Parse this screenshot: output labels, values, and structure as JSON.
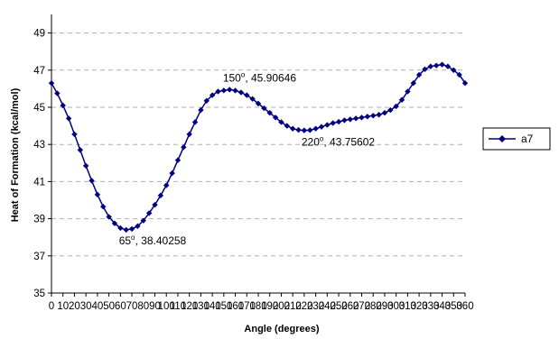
{
  "chart_data": {
    "type": "line",
    "xlabel": "Angle (degrees)",
    "ylabel": "Heat of Formation (kcal/mol)",
    "xlim": [
      0,
      360
    ],
    "ylim": [
      35,
      50
    ],
    "x_ticks": [
      "0",
      "10",
      "20",
      "30",
      "40",
      "50",
      "60",
      "70",
      "80",
      "90",
      "100",
      "110",
      "120",
      "130",
      "140",
      "150",
      "160",
      "170",
      "180",
      "190",
      "200",
      "210",
      "220",
      "230",
      "240",
      "250",
      "260",
      "270",
      "280",
      "290",
      "300",
      "310",
      "320",
      "330",
      "340",
      "350",
      "360"
    ],
    "y_ticks": [
      "35",
      "37",
      "39",
      "41",
      "43",
      "45",
      "47",
      "49"
    ],
    "grid": "horizontal dashed",
    "legend_position": "right",
    "colors": {
      "series": "#000080",
      "grid": "#b0b0b0",
      "axis": "#000000"
    },
    "series": [
      {
        "name": "a7",
        "marker": "diamond",
        "x": [
          0,
          5,
          10,
          15,
          20,
          25,
          30,
          35,
          40,
          45,
          50,
          55,
          60,
          65,
          70,
          75,
          80,
          85,
          90,
          95,
          100,
          105,
          110,
          115,
          120,
          125,
          130,
          135,
          140,
          145,
          150,
          155,
          160,
          165,
          170,
          175,
          180,
          185,
          190,
          195,
          200,
          205,
          210,
          215,
          220,
          225,
          230,
          235,
          240,
          245,
          250,
          255,
          260,
          265,
          270,
          275,
          280,
          285,
          290,
          295,
          300,
          305,
          310,
          315,
          320,
          325,
          330,
          335,
          340,
          345,
          350,
          355,
          360
        ],
        "y": [
          46.3,
          45.75,
          45.1,
          44.4,
          43.55,
          42.7,
          41.85,
          41.05,
          40.3,
          39.65,
          39.1,
          38.75,
          38.5,
          38.40258,
          38.45,
          38.6,
          38.9,
          39.3,
          39.75,
          40.25,
          40.8,
          41.45,
          42.15,
          42.85,
          43.55,
          44.2,
          44.85,
          45.35,
          45.65,
          45.85,
          45.90646,
          45.95,
          45.9,
          45.8,
          45.65,
          45.45,
          45.2,
          44.95,
          44.7,
          44.45,
          44.2,
          44.0,
          43.85,
          43.78,
          43.75602,
          43.77,
          43.85,
          43.95,
          44.05,
          44.15,
          44.22,
          44.3,
          44.35,
          44.4,
          44.45,
          44.5,
          44.55,
          44.6,
          44.7,
          44.85,
          45.05,
          45.4,
          45.85,
          46.3,
          46.75,
          47.05,
          47.2,
          47.25,
          47.3,
          47.2,
          47.0,
          46.75,
          46.3
        ]
      }
    ],
    "annotations": [
      {
        "x": 65,
        "y": 38.40258,
        "degree": "65",
        "sup": "o",
        "value": ", 38.40258"
      },
      {
        "x": 150,
        "y": 45.90646,
        "degree": "150",
        "sup": "o",
        "value": ", 45.90646"
      },
      {
        "x": 220,
        "y": 43.75602,
        "degree": "220",
        "sup": "o",
        "value": ", 43.75602"
      }
    ]
  }
}
